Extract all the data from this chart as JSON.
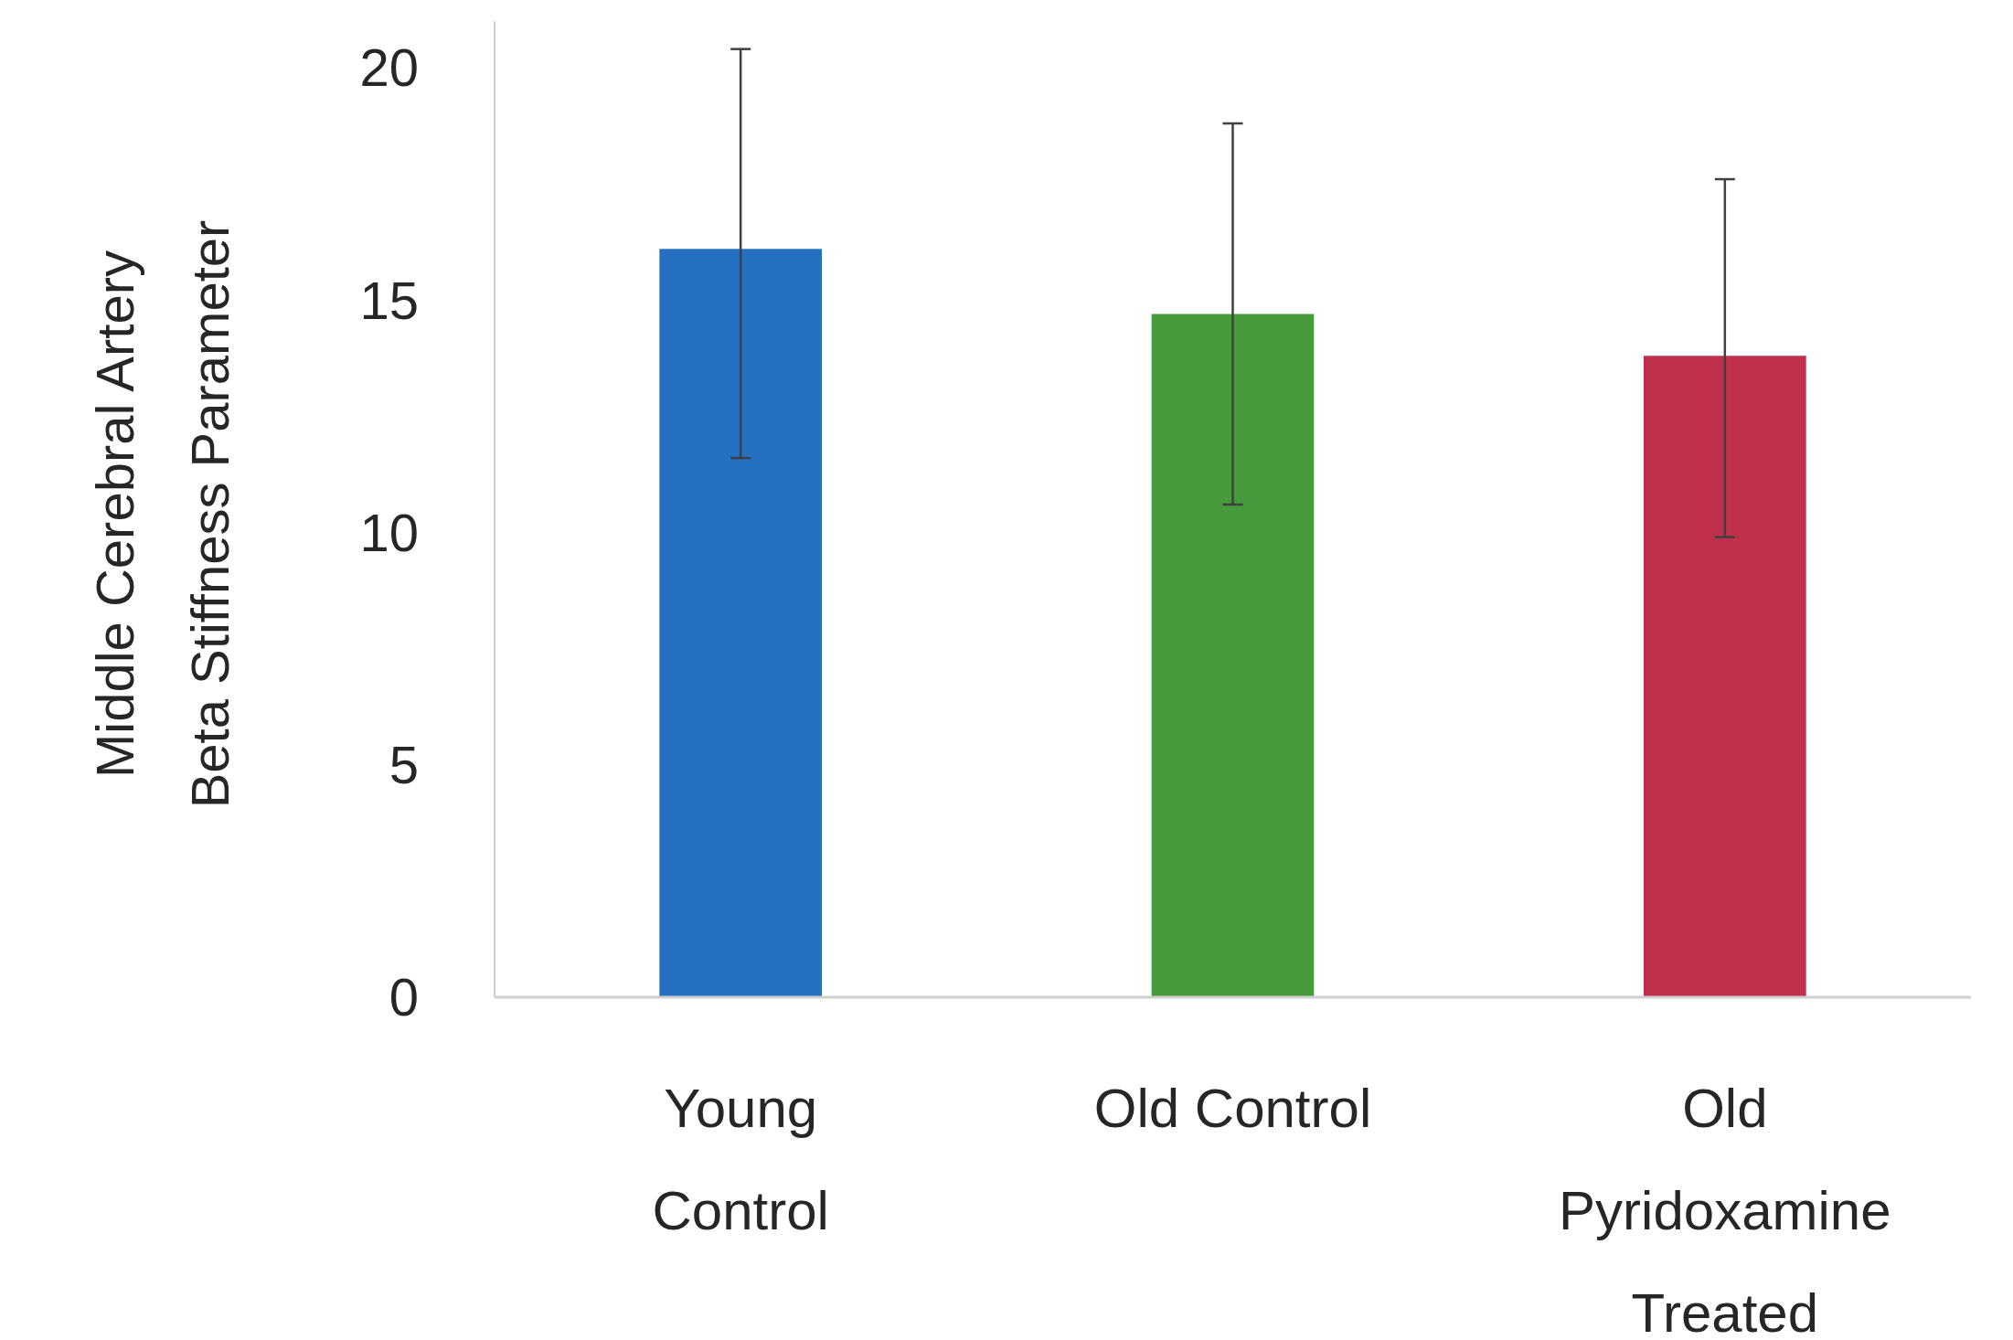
{
  "chart_data": {
    "type": "bar",
    "ylabel": "Middle Cerebral Artery Beta Stiffness Parameter",
    "categories": [
      "Young Control",
      "Old Control",
      "Old Pyridoxamine Treated"
    ],
    "values": [
      16.1,
      14.7,
      13.8
    ],
    "colors": [
      "#2570c0",
      "#479a3c",
      "#c0304d"
    ],
    "errors": [
      [
        11.6,
        20.4
      ],
      [
        10.6,
        18.8
      ],
      [
        9.9,
        17.6
      ]
    ],
    "ylim": [
      0,
      21
    ],
    "yticks": [
      0,
      5,
      10,
      15,
      20
    ],
    "grid": false
  }
}
